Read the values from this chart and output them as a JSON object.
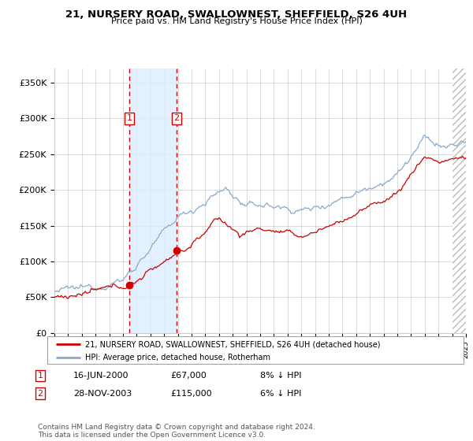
{
  "title_line1": "21, NURSERY ROAD, SWALLOWNEST, SHEFFIELD, S26 4UH",
  "title_line2": "Price paid vs. HM Land Registry's House Price Index (HPI)",
  "ylabel_values": [
    "£0",
    "£50K",
    "£100K",
    "£150K",
    "£200K",
    "£250K",
    "£300K",
    "£350K"
  ],
  "y_ticks": [
    0,
    50000,
    100000,
    150000,
    200000,
    250000,
    300000,
    350000
  ],
  "ylim": [
    0,
    370000
  ],
  "xlim": [
    1995,
    2025
  ],
  "sale1": {
    "date_x": 2000.45,
    "price": 67000,
    "label": "1"
  },
  "sale2": {
    "date_x": 2003.91,
    "price": 115000,
    "label": "2"
  },
  "red_line_color": "#cc0000",
  "blue_line_color": "#88aacc",
  "legend_label_red": "21, NURSERY ROAD, SWALLOWNEST, SHEFFIELD, S26 4UH (detached house)",
  "legend_label_blue": "HPI: Average price, detached house, Rotherham",
  "table_rows": [
    {
      "num": "1",
      "date": "16-JUN-2000",
      "price": "£67,000",
      "hpi": "8% ↓ HPI"
    },
    {
      "num": "2",
      "date": "28-NOV-2003",
      "price": "£115,000",
      "hpi": "6% ↓ HPI"
    }
  ],
  "footnote": "Contains HM Land Registry data © Crown copyright and database right 2024.\nThis data is licensed under the Open Government Licence v3.0.",
  "hatch_color": "#bbbbbb",
  "shade_color": "#ddeeff",
  "grid_color": "#cccccc",
  "background_color": "#ffffff"
}
